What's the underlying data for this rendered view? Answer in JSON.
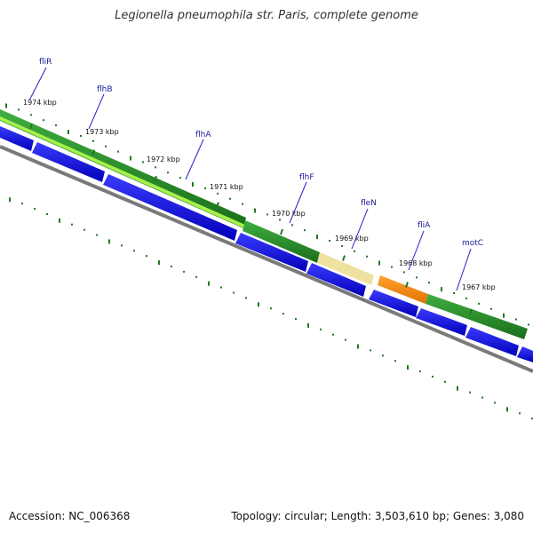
{
  "title": "Legionella pneumophila str. Paris, complete genome",
  "footer": {
    "accession": "Accession: NC_006368",
    "summary": "Topology: circular; Length: 3,503,610 bp; Genes: 3,080"
  },
  "gene_labels": [
    "fliR",
    "flhB",
    "flhA",
    "flhF",
    "fleN",
    "fliA",
    "motC"
  ],
  "kbp_labels": [
    "1974 kbp",
    "1973 kbp",
    "1972 kbp",
    "1971 kbp",
    "1970 kbp",
    "1969 kbp",
    "1968 kbp",
    "1967 kbp"
  ],
  "colors": {
    "forward_feature": "#2a8a2a",
    "forward_highlight": "#a7f04a",
    "pale_feature": "#efe2a0",
    "orange_feature": "#ff8c00",
    "reverse_cds": "#0000ee",
    "backbone": "#777777",
    "tick": "#1e7a1e",
    "label_line": "#2020cc"
  }
}
